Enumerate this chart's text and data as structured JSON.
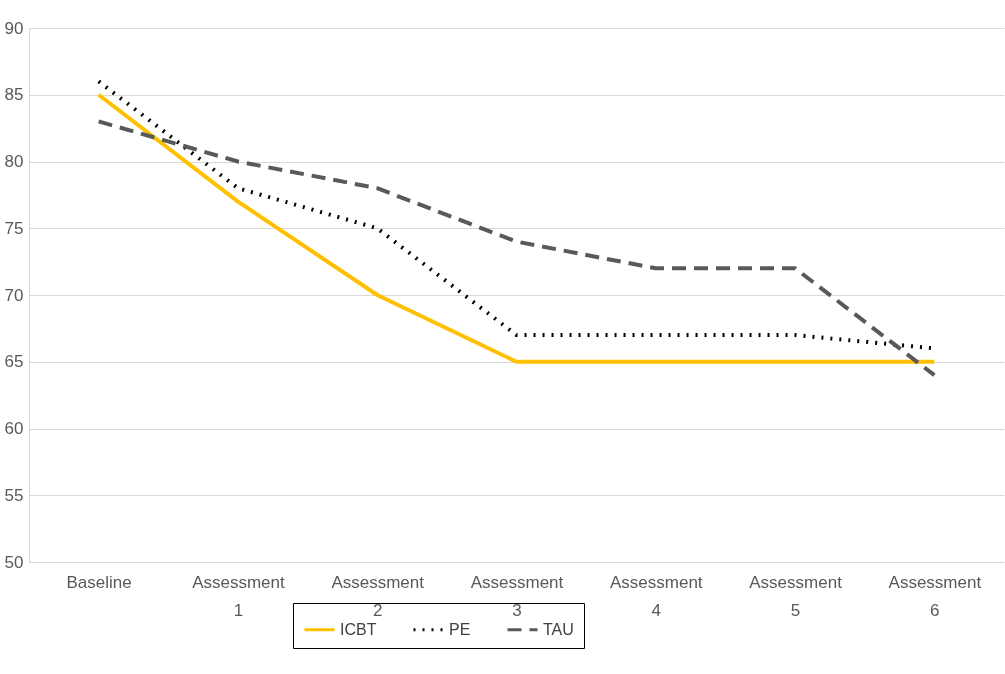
{
  "chart_data": {
    "type": "line",
    "categories": [
      "Baseline",
      "Assessment 1",
      "Assessment 2",
      "Assessment 3",
      "Assessment 4",
      "Assessment 5",
      "Assessment 6"
    ],
    "series": [
      {
        "name": "ICBT",
        "color": "#ffc000",
        "line_style": "solid",
        "values": [
          85,
          77,
          70,
          65,
          65,
          65,
          65
        ]
      },
      {
        "name": "PE",
        "color": "#000000",
        "line_style": "dotted",
        "values": [
          86,
          78,
          75,
          67,
          67,
          67,
          66
        ]
      },
      {
        "name": "TAU",
        "color": "#595959",
        "line_style": "dashed",
        "values": [
          83,
          80,
          78,
          74,
          72,
          72,
          64
        ]
      }
    ],
    "ylim": [
      50,
      90
    ],
    "yticks": [
      50,
      55,
      60,
      65,
      70,
      75,
      80,
      85,
      90
    ],
    "grid": "y",
    "legend": "bottom",
    "marker": "none"
  }
}
